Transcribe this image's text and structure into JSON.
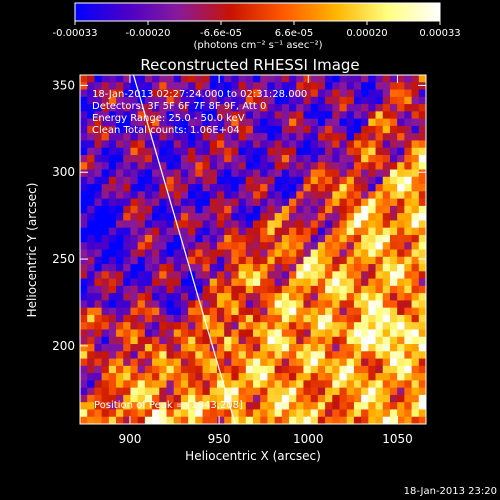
{
  "chart_data": {
    "type": "heatmap",
    "title": "Reconstructed RHESSI Image",
    "xlabel": "Heliocentric X (arcsec)",
    "ylabel": "Heliocentric Y (arcsec)",
    "xlim": [
      872,
      1066
    ],
    "ylim": [
      155,
      356
    ],
    "x_ticks": [
      900,
      950,
      1000,
      1050
    ],
    "y_ticks": [
      200,
      250,
      300,
      350
    ],
    "colorbar": {
      "range": [
        -0.00033,
        0.00033
      ],
      "ticks": [
        "-0.00033",
        "-0.00020",
        "-6.6e-05",
        "6.6e-05",
        "0.00020",
        "0.00033"
      ],
      "units": "(photons cm⁻² s⁻¹ asec⁻²)",
      "colors": [
        "#0000ff",
        "#4b00c8",
        "#8a1a9a",
        "#c81400",
        "#ff5a00",
        "#ffb400",
        "#ffff80",
        "#ffffff"
      ]
    },
    "annotations": [
      "18-Jan-2013 02:27:24.000 to 02:31:28.000",
      "Detectors: 3F 5F 6F 7F 8F 9F, Att 0",
      "Energy Range: 25.0 - 50.0 keV",
      "Clean    Total counts: 1.06E+04",
      "Position of Peak = [1043,208]"
    ],
    "limb": [
      [
        902,
        356
      ],
      [
        959,
        155
      ]
    ],
    "timestamp": "18-Jan-2013 23:20"
  }
}
